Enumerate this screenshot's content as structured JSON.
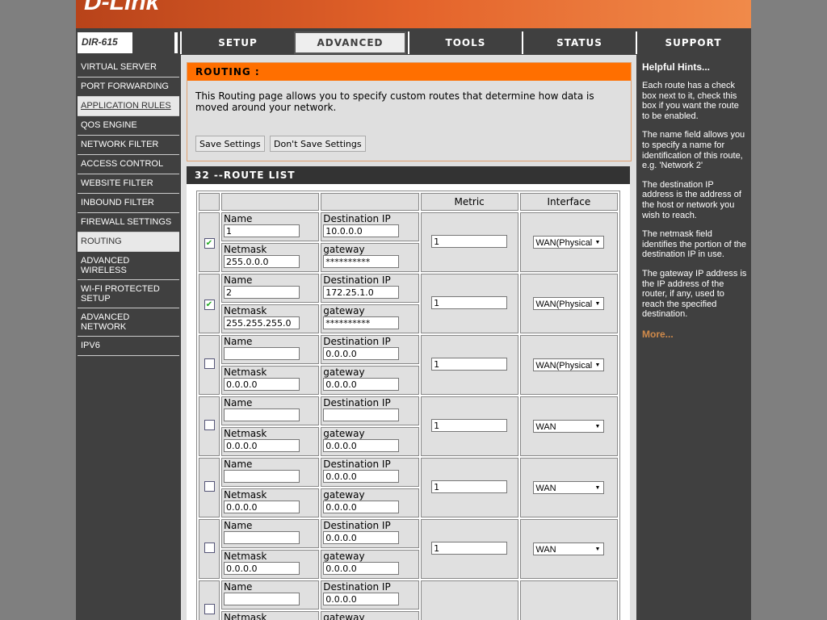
{
  "brand": {
    "logo": "D-Link",
    "model": "DIR-615"
  },
  "tabs": [
    {
      "label": "SETUP"
    },
    {
      "label": "ADVANCED",
      "active": true
    },
    {
      "label": "TOOLS"
    },
    {
      "label": "STATUS"
    },
    {
      "label": "SUPPORT"
    }
  ],
  "sidebar": [
    {
      "label": "VIRTUAL SERVER"
    },
    {
      "label": "PORT FORWARDING"
    },
    {
      "label": "APPLICATION RULES",
      "hover": true
    },
    {
      "label": "QOS ENGINE"
    },
    {
      "label": "NETWORK FILTER"
    },
    {
      "label": "ACCESS CONTROL"
    },
    {
      "label": "WEBSITE FILTER"
    },
    {
      "label": "INBOUND FILTER"
    },
    {
      "label": "FIREWALL SETTINGS"
    },
    {
      "label": "ROUTING",
      "active": true
    },
    {
      "label": "ADVANCED WIRELESS"
    },
    {
      "label": "WI-FI PROTECTED SETUP"
    },
    {
      "label": "ADVANCED NETWORK"
    },
    {
      "label": "IPV6"
    }
  ],
  "routing": {
    "title": "ROUTING :",
    "description": "This Routing page allows you to specify custom routes that determine how data is moved around your network.",
    "save": "Save Settings",
    "dont_save": "Don't Save Settings"
  },
  "route_list": {
    "title": "32 --ROUTE LIST",
    "headers": {
      "metric": "Metric",
      "interface": "Interface"
    },
    "labels": {
      "name": "Name",
      "dest": "Destination IP",
      "netmask": "Netmask",
      "gateway": "gateway"
    }
  },
  "routes": [
    {
      "enabled": true,
      "name": "1",
      "dest": "10.0.0.0",
      "netmask": "255.0.0.0",
      "gateway": "**********",
      "metric": "1",
      "interface": "WAN(Physical"
    },
    {
      "enabled": true,
      "name": "2",
      "dest": "172.25.1.0",
      "netmask": "255.255.255.0",
      "gateway": "**********",
      "metric": "1",
      "interface": "WAN(Physical"
    },
    {
      "enabled": false,
      "name": "",
      "dest": "0.0.0.0",
      "netmask": "0.0.0.0",
      "gateway": "0.0.0.0",
      "metric": "1",
      "interface": "WAN(Physical"
    },
    {
      "enabled": false,
      "name": "",
      "dest": "",
      "netmask": "0.0.0.0",
      "gateway": "0.0.0.0",
      "metric": "1",
      "interface": "WAN"
    },
    {
      "enabled": false,
      "name": "",
      "dest": "0.0.0.0",
      "netmask": "0.0.0.0",
      "gateway": "0.0.0.0",
      "metric": "1",
      "interface": "WAN"
    },
    {
      "enabled": false,
      "name": "",
      "dest": "0.0.0.0",
      "netmask": "0.0.0.0",
      "gateway": "0.0.0.0",
      "metric": "1",
      "interface": "WAN"
    },
    {
      "enabled": false,
      "name": "",
      "dest": "0.0.0.0",
      "netmask": "",
      "gateway": "",
      "metric": "",
      "interface": ""
    }
  ],
  "hints": {
    "title": "Helpful Hints...",
    "paragraphs": [
      "Each route has a check box next to it, check this box if you want the route to be enabled.",
      "The name field allows you to specify a name for identification of this route, e.g. 'Network 2'",
      "The destination IP address is the address of the host or network you wish to reach.",
      "The netmask field identifies the portion of the destination IP in use.",
      "The gateway IP address is the IP address of the router, if any, used to reach the specified destination."
    ],
    "more": "More..."
  }
}
